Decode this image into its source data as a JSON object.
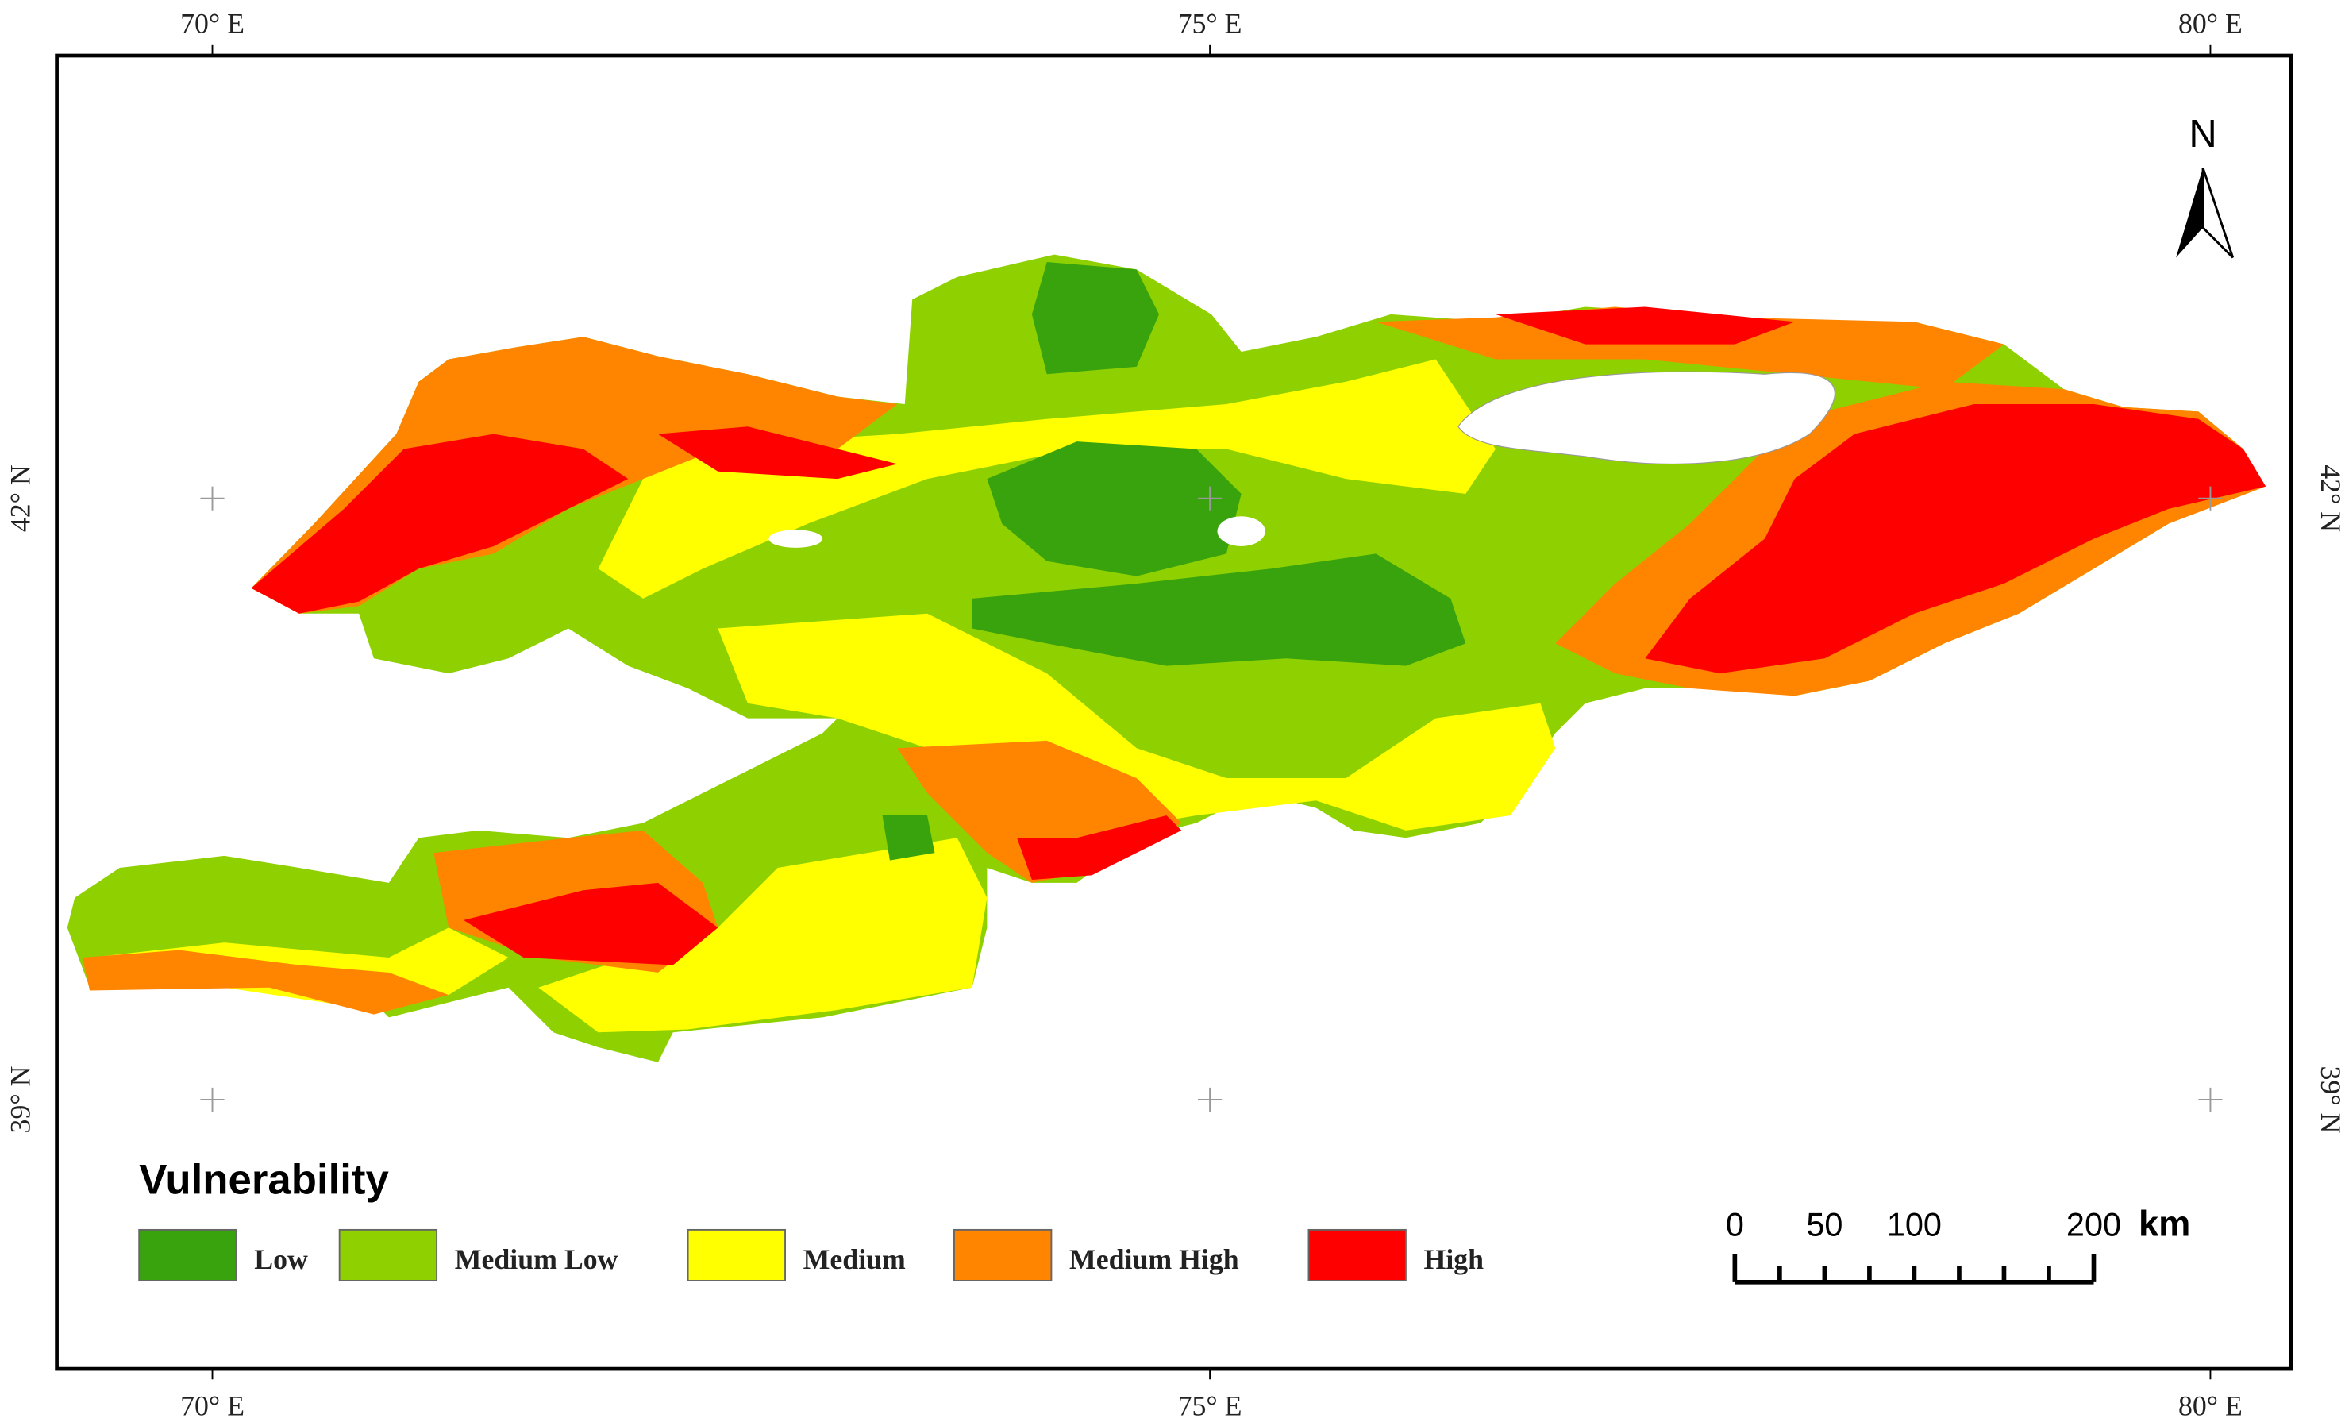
{
  "graticule": {
    "longitudes": [
      "70° E",
      "75° E",
      "80° E"
    ],
    "latitudes": [
      "42° N",
      "39° N"
    ]
  },
  "north_arrow": "N",
  "legend": {
    "title": "Vulnerability",
    "items": [
      {
        "label": "Low",
        "color": "#38a30d"
      },
      {
        "label": "Medium Low",
        "color": "#8fd100"
      },
      {
        "label": "Medium",
        "color": "#ffff00"
      },
      {
        "label": "Medium High",
        "color": "#ff8400"
      },
      {
        "label": "High",
        "color": "#ff0000"
      }
    ]
  },
  "scale_bar": {
    "labels": [
      0,
      50,
      100,
      200
    ],
    "unit": "km"
  }
}
